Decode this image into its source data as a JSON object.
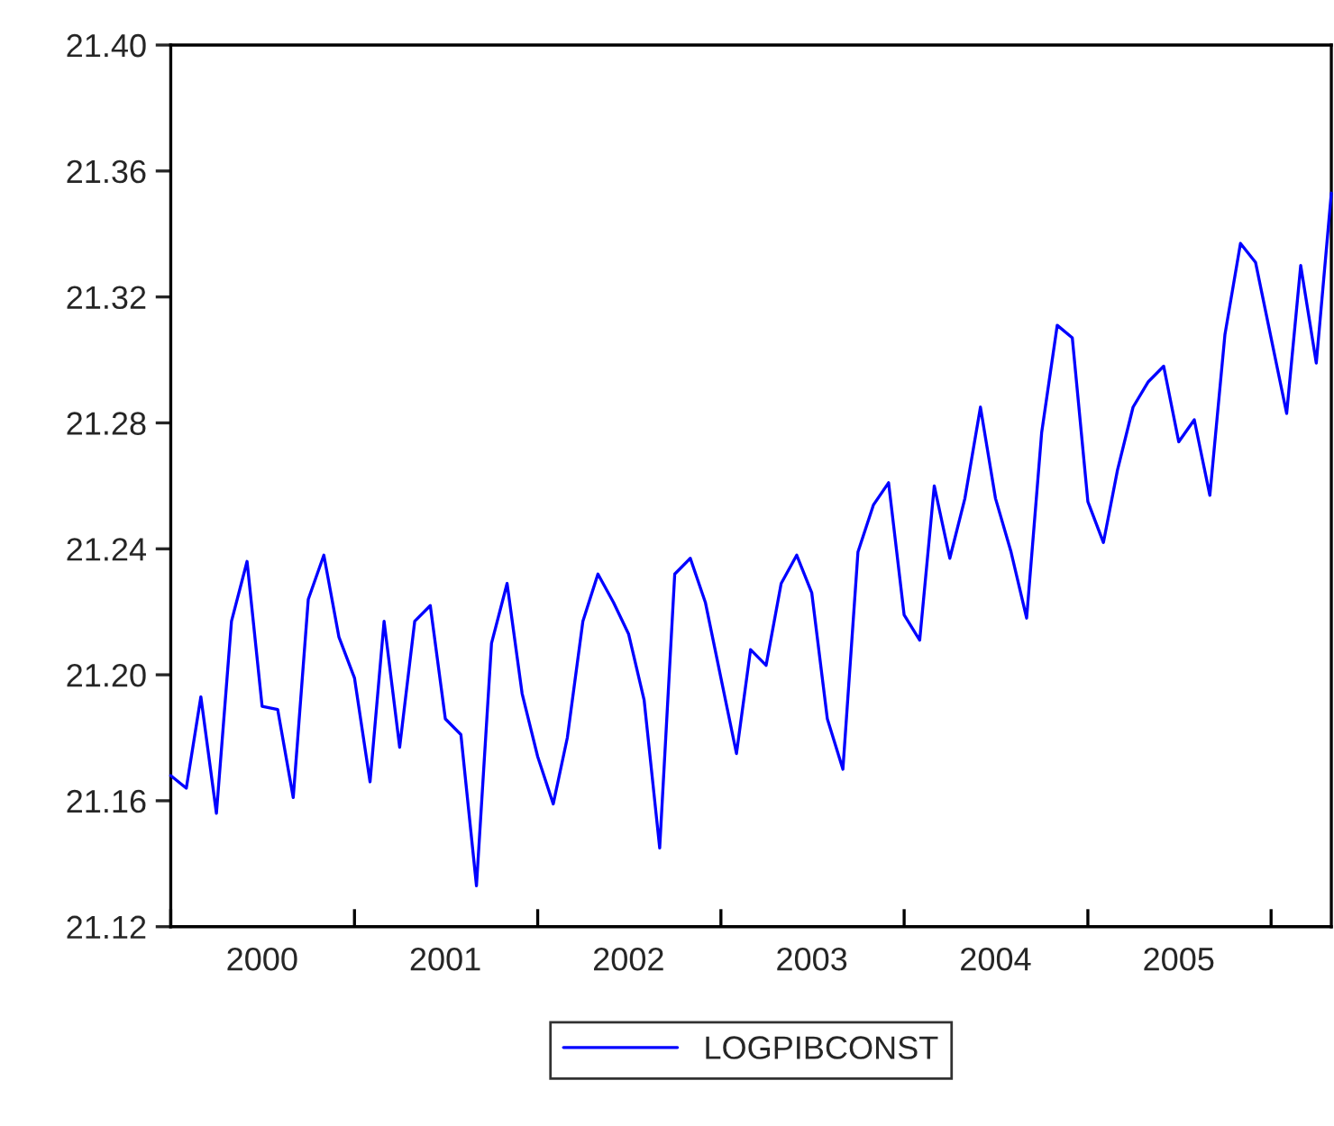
{
  "chart_data": {
    "type": "line",
    "x": [
      "2000-01",
      "2000-02",
      "2000-03",
      "2000-04",
      "2000-05",
      "2000-06",
      "2000-07",
      "2000-08",
      "2000-09",
      "2000-10",
      "2000-11",
      "2000-12",
      "2001-01",
      "2001-02",
      "2001-03",
      "2001-04",
      "2001-05",
      "2001-06",
      "2001-07",
      "2001-08",
      "2001-09",
      "2001-10",
      "2001-11",
      "2001-12",
      "2002-01",
      "2002-02",
      "2002-03",
      "2002-04",
      "2002-05",
      "2002-06",
      "2002-07",
      "2002-08",
      "2002-09",
      "2002-10",
      "2002-11",
      "2002-12",
      "2003-01",
      "2003-02",
      "2003-03",
      "2003-04",
      "2003-05",
      "2003-06",
      "2003-07",
      "2003-08",
      "2003-09",
      "2003-10",
      "2003-11",
      "2003-12",
      "2004-01",
      "2004-02",
      "2004-03",
      "2004-04",
      "2004-05",
      "2004-06",
      "2004-07",
      "2004-08",
      "2004-09",
      "2004-10",
      "2004-11",
      "2004-12",
      "2005-01",
      "2005-02",
      "2005-03",
      "2005-04",
      "2005-05",
      "2005-06",
      "2005-07",
      "2005-08",
      "2005-09",
      "2005-10",
      "2005-11",
      "2005-12",
      "2006-01",
      "2006-02",
      "2006-03",
      "2006-04",
      "2006-05"
    ],
    "series": [
      {
        "name": "LOGPIBCONST",
        "color": "#0000ff",
        "values": [
          21.168,
          21.164,
          21.193,
          21.156,
          21.217,
          21.236,
          21.19,
          21.189,
          21.161,
          21.224,
          21.238,
          21.212,
          21.199,
          21.166,
          21.217,
          21.177,
          21.217,
          21.222,
          21.186,
          21.181,
          21.133,
          21.21,
          21.229,
          21.194,
          21.174,
          21.159,
          21.18,
          21.217,
          21.232,
          21.223,
          21.213,
          21.192,
          21.145,
          21.232,
          21.237,
          21.223,
          21.199,
          21.175,
          21.208,
          21.203,
          21.229,
          21.238,
          21.226,
          21.186,
          21.17,
          21.239,
          21.254,
          21.261,
          21.219,
          21.211,
          21.26,
          21.237,
          21.256,
          21.285,
          21.256,
          21.239,
          21.218,
          21.277,
          21.311,
          21.307,
          21.255,
          21.242,
          21.265,
          21.285,
          21.293,
          21.298,
          21.274,
          21.281,
          21.257,
          21.308,
          21.337,
          21.331,
          21.307,
          21.283,
          21.33,
          21.299,
          21.353
        ]
      }
    ],
    "xlim": [
      "2000-01",
      "2006-05"
    ],
    "xticks": [
      {
        "value": "2000-01",
        "label": null
      },
      {
        "value": "2001-01",
        "label": null
      },
      {
        "value": "2002-01",
        "label": null
      },
      {
        "value": "2003-01",
        "label": null
      },
      {
        "value": "2004-01",
        "label": null
      },
      {
        "value": "2005-01",
        "label": null
      },
      {
        "value": "2006-01",
        "label": null
      },
      {
        "value": "2000-07",
        "label": "2000"
      },
      {
        "value": "2001-07",
        "label": "2001"
      },
      {
        "value": "2002-07",
        "label": "2002"
      },
      {
        "value": "2003-07",
        "label": "2003"
      },
      {
        "value": "2004-07",
        "label": "2004"
      },
      {
        "value": "2005-07",
        "label": "2005"
      }
    ],
    "ylim": [
      21.12,
      21.4
    ],
    "yticks": [
      {
        "value": 21.12,
        "label": "21.12"
      },
      {
        "value": 21.16,
        "label": "21.16"
      },
      {
        "value": 21.2,
        "label": "21.20"
      },
      {
        "value": 21.24,
        "label": "21.24"
      },
      {
        "value": 21.28,
        "label": "21.28"
      },
      {
        "value": 21.32,
        "label": "21.32"
      },
      {
        "value": 21.36,
        "label": "21.36"
      },
      {
        "value": 21.4,
        "label": "21.40"
      }
    ],
    "grid": false,
    "legend": "bottom",
    "marker": "none",
    "line_style": "solid"
  }
}
